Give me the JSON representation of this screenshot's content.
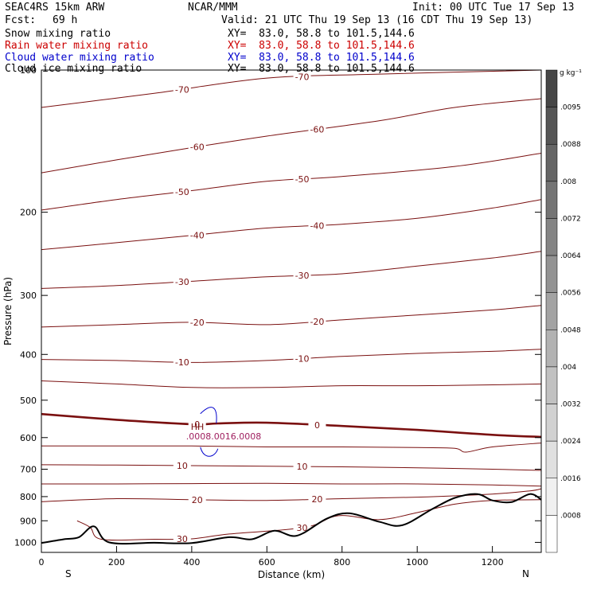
{
  "header": {
    "model": "SEAC4RS 15km ARW",
    "org": "NCAR/MMM",
    "init": "Init: 00 UTC Tue 17 Sep 13",
    "fcst_label": "Fcst:",
    "fcst_value": "69 h",
    "valid": "Valid: 21 UTC Thu 19 Sep 13 (16 CDT Thu 19 Sep 13)",
    "fields": [
      {
        "name": "Snow mixing ratio",
        "xy": "XY=  83.0, 58.8 to 101.5,144.6",
        "color": "#000000"
      },
      {
        "name": "Rain water mixing ratio",
        "xy": "XY=  83.0, 58.8 to 101.5,144.6",
        "color": "#cc0000"
      },
      {
        "name": "Cloud water mixing ratio",
        "xy": "XY=  83.0, 58.8 to 101.5,144.6",
        "color": "#0000cc"
      },
      {
        "name": "Cloud ice mixing ratio",
        "xy": "XY=  83.0, 58.8 to 101.5,144.6",
        "color": "#000000"
      }
    ]
  },
  "chart_data": {
    "type": "contour cross-section",
    "xlabel": "Distance (km)",
    "ylabel": "Pressure (hPa)",
    "xlim": [
      0,
      1330
    ],
    "ylim": [
      1050,
      100
    ],
    "y_scale": "log",
    "x_ticks": [
      0,
      200,
      400,
      600,
      800,
      1000,
      1200
    ],
    "y_ticks": [
      100,
      200,
      300,
      400,
      500,
      600,
      700,
      800,
      900,
      1000
    ],
    "x_end_labels": {
      "left": "S",
      "right": "N"
    },
    "temperature_contours": [
      {
        "level": -70,
        "p": [
          [
            0,
            120
          ],
          [
            300,
            112
          ],
          [
            600,
            104
          ],
          [
            900,
            102
          ],
          [
            1330,
            100
          ]
        ]
      },
      {
        "level": -60,
        "p": [
          [
            0,
            165
          ],
          [
            200,
            155
          ],
          [
            400,
            146
          ],
          [
            600,
            138
          ],
          [
            900,
            128
          ],
          [
            1100,
            120
          ],
          [
            1330,
            115
          ]
        ]
      },
      {
        "level": -50,
        "p": [
          [
            0,
            198
          ],
          [
            200,
            188
          ],
          [
            400,
            180
          ],
          [
            600,
            172
          ],
          [
            800,
            168
          ],
          [
            1100,
            160
          ],
          [
            1330,
            150
          ]
        ]
      },
      {
        "level": -40,
        "p": [
          [
            0,
            240
          ],
          [
            200,
            232
          ],
          [
            400,
            224
          ],
          [
            600,
            216
          ],
          [
            800,
            212
          ],
          [
            1000,
            206
          ],
          [
            1200,
            196
          ],
          [
            1330,
            188
          ]
        ]
      },
      {
        "level": -30,
        "p": [
          [
            0,
            290
          ],
          [
            200,
            286
          ],
          [
            400,
            280
          ],
          [
            600,
            274
          ],
          [
            800,
            270
          ],
          [
            1000,
            260
          ],
          [
            1200,
            250
          ],
          [
            1330,
            242
          ]
        ]
      },
      {
        "level": -20,
        "p": [
          [
            0,
            350
          ],
          [
            200,
            346
          ],
          [
            400,
            342
          ],
          [
            600,
            346
          ],
          [
            800,
            338
          ],
          [
            1000,
            330
          ],
          [
            1200,
            322
          ],
          [
            1330,
            315
          ]
        ]
      },
      {
        "level": -10,
        "p": [
          [
            0,
            410
          ],
          [
            200,
            412
          ],
          [
            400,
            416
          ],
          [
            600,
            412
          ],
          [
            800,
            404
          ],
          [
            1000,
            398
          ],
          [
            1200,
            394
          ],
          [
            1330,
            390
          ]
        ]
      },
      {
        "level": -5,
        "p": [
          [
            0,
            455
          ],
          [
            200,
            462
          ],
          [
            400,
            470
          ],
          [
            600,
            470
          ],
          [
            800,
            466
          ],
          [
            1000,
            466
          ],
          [
            1200,
            464
          ],
          [
            1330,
            462
          ]
        ]
      },
      {
        "level": 0,
        "p": [
          [
            0,
            535
          ],
          [
            200,
            550
          ],
          [
            400,
            562
          ],
          [
            470,
            560
          ],
          [
            600,
            558
          ],
          [
            800,
            567
          ],
          [
            1000,
            578
          ],
          [
            1200,
            592
          ],
          [
            1330,
            598
          ]
        ]
      },
      {
        "level": 5,
        "p": [
          [
            0,
            625
          ],
          [
            200,
            625
          ],
          [
            400,
            625
          ],
          [
            600,
            628
          ],
          [
            800,
            628
          ],
          [
            1000,
            630
          ],
          [
            1100,
            632
          ],
          [
            1130,
            644
          ],
          [
            1200,
            628
          ],
          [
            1330,
            616
          ]
        ]
      },
      {
        "level": 10,
        "p": [
          [
            0,
            685
          ],
          [
            200,
            686
          ],
          [
            400,
            688
          ],
          [
            600,
            690
          ],
          [
            800,
            692
          ],
          [
            1000,
            695
          ],
          [
            1200,
            700
          ],
          [
            1330,
            704
          ]
        ]
      },
      {
        "level": 15,
        "p": [
          [
            0,
            752
          ],
          [
            200,
            752
          ],
          [
            400,
            751
          ],
          [
            600,
            750
          ],
          [
            800,
            752
          ],
          [
            1000,
            752
          ],
          [
            1200,
            756
          ],
          [
            1330,
            760
          ]
        ]
      },
      {
        "level": 20,
        "p": [
          [
            0,
            820
          ],
          [
            200,
            808
          ],
          [
            400,
            812
          ],
          [
            600,
            815
          ],
          [
            800,
            808
          ],
          [
            1000,
            802
          ],
          [
            1200,
            790
          ],
          [
            1300,
            778
          ],
          [
            1330,
            770
          ]
        ]
      },
      {
        "level": 30,
        "p": [
          [
            95,
            900
          ],
          [
            130,
            930
          ],
          [
            160,
            985
          ],
          [
            300,
            985
          ],
          [
            400,
            983
          ],
          [
            500,
            960
          ],
          [
            700,
            930
          ],
          [
            790,
            878
          ],
          [
            900,
            895
          ],
          [
            1000,
            865
          ],
          [
            1100,
            830
          ],
          [
            1200,
            815
          ],
          [
            1330,
            812
          ]
        ]
      }
    ],
    "labels_on_contours": [
      "-70",
      "-60",
      "-50",
      "-40",
      "-30",
      "-20",
      "-10",
      "0",
      "10",
      "20",
      "30"
    ],
    "terrain": [
      [
        0,
        1003
      ],
      [
        60,
        985
      ],
      [
        100,
        975
      ],
      [
        140,
        925
      ],
      [
        180,
        1000
      ],
      [
        300,
        1002
      ],
      [
        400,
        1003
      ],
      [
        500,
        975
      ],
      [
        560,
        985
      ],
      [
        620,
        945
      ],
      [
        680,
        968
      ],
      [
        760,
        890
      ],
      [
        820,
        868
      ],
      [
        900,
        905
      ],
      [
        960,
        920
      ],
      [
        1040,
        850
      ],
      [
        1100,
        805
      ],
      [
        1160,
        790
      ],
      [
        1200,
        815
      ],
      [
        1250,
        822
      ],
      [
        1300,
        790
      ],
      [
        1330,
        812
      ]
    ],
    "cloud_features": {
      "text_label": "HH",
      "values_text": ".0008.0016.0008",
      "center_km": 440,
      "center_hpa": 600
    },
    "colorbar": {
      "unit": "g kg⁻¹",
      "labels": [
        ".0095",
        ".0088",
        ".008",
        ".0072",
        ".0064",
        ".0056",
        ".0048",
        ".004",
        ".0032",
        ".0024",
        ".0016",
        ".0008"
      ]
    }
  }
}
